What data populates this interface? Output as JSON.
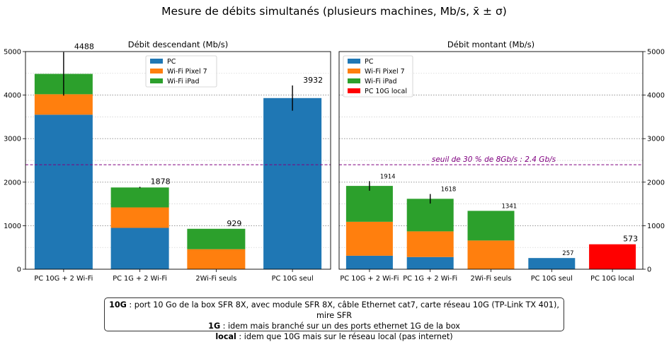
{
  "suptitle": "Mesure de débits simultanés (plusieurs machines, Mb/s, x̄ ± σ)",
  "colors": {
    "PC": "#1f77b4",
    "Wi-Fi Pixel 7": "#ff7f0e",
    "Wi-Fi iPad": "#2ca02c",
    "PC 10G local": "#ff0000",
    "threshold": "#800080"
  },
  "chart_data": [
    {
      "type": "bar",
      "stacked": true,
      "title": "Débit descendant (Mb/s)",
      "ylim": [
        0,
        5000
      ],
      "yticks": [
        0,
        1000,
        2000,
        3000,
        4000,
        5000
      ],
      "categories": [
        "PC 10G + 2 Wi-Fi",
        "PC 1G + 2 Wi-Fi",
        "2Wi-Fi seuls",
        "PC 10G seul"
      ],
      "series": [
        {
          "name": "PC",
          "values": [
            3550,
            950,
            0,
            3932
          ]
        },
        {
          "name": "Wi-Fi Pixel 7",
          "values": [
            470,
            470,
            460,
            0
          ]
        },
        {
          "name": "Wi-Fi iPad",
          "values": [
            468,
            458,
            469,
            0
          ]
        }
      ],
      "totals": [
        4488,
        1878,
        929,
        3932
      ],
      "total_labels": [
        "4488",
        "1878",
        "929",
        "3932"
      ],
      "error": [
        500,
        15,
        0,
        290
      ],
      "threshold": 2400,
      "legend": [
        "PC",
        "Wi-Fi Pixel 7",
        "Wi-Fi iPad"
      ],
      "legend_position": "top-center"
    },
    {
      "type": "bar",
      "stacked": true,
      "title": "Débit montant (Mb/s)",
      "ylim": [
        0,
        5000
      ],
      "yticks": [
        0,
        1000,
        2000,
        3000,
        4000,
        5000
      ],
      "categories": [
        "PC 10G + 2 Wi-Fi",
        "PC 1G + 2 Wi-Fi",
        "2Wi-Fi seuls",
        "PC 10G seul",
        "PC 10G local"
      ],
      "series": [
        {
          "name": "PC",
          "values": [
            310,
            280,
            0,
            257,
            0
          ]
        },
        {
          "name": "Wi-Fi Pixel 7",
          "values": [
            780,
            590,
            660,
            0,
            0
          ]
        },
        {
          "name": "Wi-Fi iPad",
          "values": [
            824,
            748,
            681,
            0,
            0
          ]
        },
        {
          "name": "PC 10G local",
          "values": [
            0,
            0,
            0,
            0,
            573
          ]
        }
      ],
      "totals": [
        1914,
        1618,
        1341,
        257,
        573
      ],
      "total_labels": [
        "1914",
        "1618",
        "1341",
        "257",
        "573"
      ],
      "error": [
        110,
        110,
        0,
        0,
        0
      ],
      "threshold": 2400,
      "threshold_label": "seuil de 30 % de 8Gb/s : 2.4 Gb/s",
      "legend": [
        "PC",
        "Wi-Fi Pixel 7",
        "Wi-Fi iPad",
        "PC 10G local"
      ],
      "legend_position": "top-left"
    }
  ],
  "notes": {
    "line1_bold": "10G",
    "line1_text": " : port 10 Go de la box SFR 8X, avec module SFR 8X, câble Ethernet cat7, carte réseau 10G (TP-Link TX 401), mire SFR",
    "line2_bold": "1G",
    "line2_text": " : idem mais branché sur un des ports ethernet 1G de la box",
    "line3_bold": "local",
    "line3_text": " : idem que 10G mais sur le réseau local (pas internet)"
  }
}
